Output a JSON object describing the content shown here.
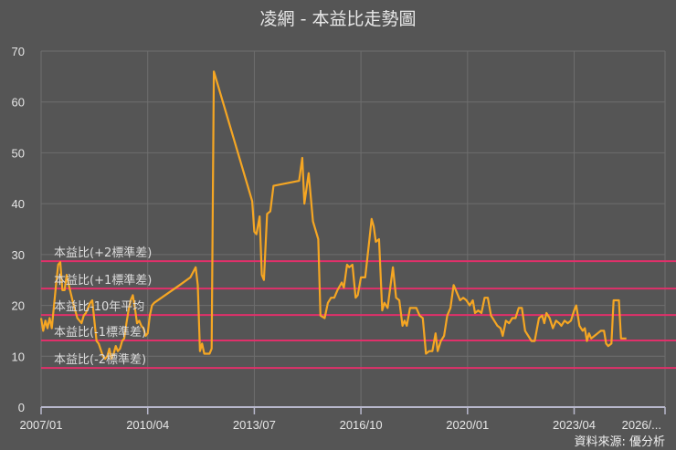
{
  "chart_data": {
    "type": "line",
    "title": "凌網 - 本益比走勢圖",
    "xlabel": "",
    "ylabel": "",
    "ylim": [
      0,
      70
    ],
    "yticks": [
      0,
      10,
      20,
      30,
      40,
      50,
      60,
      70
    ],
    "xticks": [
      "2007/01",
      "2010/04",
      "2013/07",
      "2016/10",
      "2020/01",
      "2023/04",
      "2026/..."
    ],
    "grid": true,
    "source": "資料來源: 優分析",
    "series": [
      {
        "name": "本益比",
        "color": "#f5a623",
        "points": [
          [
            0.0,
            17.5
          ],
          [
            0.02,
            15.0
          ],
          [
            0.04,
            17.0
          ],
          [
            0.06,
            15.5
          ],
          [
            0.08,
            17.5
          ],
          [
            0.1,
            15.5
          ],
          [
            0.14,
            24.0
          ],
          [
            0.16,
            28.0
          ],
          [
            0.18,
            28.5
          ],
          [
            0.2,
            23.0
          ],
          [
            0.22,
            23.0
          ],
          [
            0.24,
            26.0
          ],
          [
            0.26,
            24.0
          ],
          [
            0.3,
            20.5
          ],
          [
            0.34,
            17.5
          ],
          [
            0.38,
            16.5
          ],
          [
            0.4,
            18.0
          ],
          [
            0.42,
            18.5
          ],
          [
            0.46,
            20.5
          ],
          [
            0.48,
            21.0
          ],
          [
            0.5,
            17.0
          ],
          [
            0.52,
            13.0
          ],
          [
            0.54,
            12.5
          ],
          [
            0.58,
            10.0
          ],
          [
            0.6,
            9.5
          ],
          [
            0.62,
            10.0
          ],
          [
            0.64,
            11.5
          ],
          [
            0.66,
            9.5
          ],
          [
            0.68,
            10.5
          ],
          [
            0.7,
            12.0
          ],
          [
            0.72,
            11.0
          ],
          [
            0.74,
            11.5
          ],
          [
            0.76,
            13.0
          ],
          [
            0.78,
            13.5
          ],
          [
            0.8,
            16.5
          ],
          [
            0.82,
            19.0
          ],
          [
            0.84,
            21.0
          ],
          [
            0.86,
            22.0
          ],
          [
            0.88,
            19.5
          ],
          [
            0.9,
            16.5
          ],
          [
            0.92,
            17.0
          ],
          [
            0.94,
            16.0
          ],
          [
            0.96,
            15.5
          ],
          [
            0.98,
            14.0
          ],
          [
            1.0,
            14.5
          ],
          [
            1.02,
            18.0
          ],
          [
            1.04,
            20.0
          ],
          [
            1.06,
            20.5
          ],
          [
            1.3,
            24.0
          ],
          [
            1.4,
            25.5
          ],
          [
            1.45,
            27.5
          ],
          [
            1.47,
            24.0
          ],
          [
            1.49,
            11.0
          ],
          [
            1.51,
            12.5
          ],
          [
            1.53,
            10.5
          ],
          [
            1.58,
            10.5
          ],
          [
            1.6,
            11.5
          ],
          [
            1.62,
            66.0
          ],
          [
            1.98,
            40.5
          ],
          [
            2.0,
            34.5
          ],
          [
            2.02,
            34.0
          ],
          [
            2.05,
            37.5
          ],
          [
            2.07,
            26.0
          ],
          [
            2.09,
            25.0
          ],
          [
            2.12,
            38.0
          ],
          [
            2.15,
            38.5
          ],
          [
            2.18,
            43.5
          ],
          [
            2.42,
            44.5
          ],
          [
            2.45,
            49.0
          ],
          [
            2.47,
            40.0
          ],
          [
            2.51,
            46.0
          ],
          [
            2.55,
            36.5
          ],
          [
            2.6,
            33.0
          ],
          [
            2.62,
            18.0
          ],
          [
            2.66,
            17.5
          ],
          [
            2.69,
            20.5
          ],
          [
            2.72,
            21.5
          ],
          [
            2.75,
            21.5
          ],
          [
            2.78,
            23.0
          ],
          [
            2.82,
            24.5
          ],
          [
            2.84,
            23.5
          ],
          [
            2.87,
            28.0
          ],
          [
            2.89,
            27.5
          ],
          [
            2.92,
            28.0
          ],
          [
            2.95,
            21.5
          ],
          [
            2.97,
            22.0
          ],
          [
            3.0,
            25.5
          ],
          [
            3.04,
            25.5
          ],
          [
            3.08,
            33.0
          ],
          [
            3.1,
            37.0
          ],
          [
            3.12,
            35.5
          ],
          [
            3.14,
            32.5
          ],
          [
            3.17,
            33.0
          ],
          [
            3.2,
            19.0
          ],
          [
            3.22,
            20.5
          ],
          [
            3.25,
            19.5
          ],
          [
            3.3,
            27.5
          ],
          [
            3.33,
            21.5
          ],
          [
            3.36,
            21.0
          ],
          [
            3.39,
            16.0
          ],
          [
            3.41,
            17.0
          ],
          [
            3.43,
            16.0
          ],
          [
            3.46,
            19.5
          ],
          [
            3.52,
            19.5
          ],
          [
            3.55,
            18.0
          ],
          [
            3.58,
            17.5
          ],
          [
            3.61,
            10.5
          ],
          [
            3.64,
            11.0
          ],
          [
            3.67,
            11.0
          ],
          [
            3.7,
            14.5
          ],
          [
            3.72,
            11.0
          ],
          [
            3.75,
            13.0
          ],
          [
            3.78,
            14.0
          ],
          [
            3.81,
            18.0
          ],
          [
            3.84,
            19.5
          ],
          [
            3.87,
            24.0
          ],
          [
            3.9,
            22.5
          ],
          [
            3.93,
            21.0
          ],
          [
            3.96,
            21.5
          ],
          [
            3.99,
            21.0
          ],
          [
            4.02,
            20.0
          ],
          [
            4.05,
            21.0
          ],
          [
            4.07,
            18.5
          ],
          [
            4.1,
            19.0
          ],
          [
            4.13,
            18.5
          ],
          [
            4.16,
            21.5
          ],
          [
            4.19,
            21.5
          ],
          [
            4.22,
            18.0
          ],
          [
            4.25,
            17.0
          ],
          [
            4.28,
            16.0
          ],
          [
            4.31,
            15.5
          ],
          [
            4.33,
            14.0
          ],
          [
            4.36,
            17.0
          ],
          [
            4.39,
            16.5
          ],
          [
            4.42,
            17.5
          ],
          [
            4.45,
            17.5
          ],
          [
            4.48,
            19.5
          ],
          [
            4.51,
            19.5
          ],
          [
            4.54,
            15.0
          ],
          [
            4.57,
            14.0
          ],
          [
            4.6,
            13.0
          ],
          [
            4.63,
            13.0
          ],
          [
            4.67,
            17.5
          ],
          [
            4.7,
            18.0
          ],
          [
            4.72,
            16.5
          ],
          [
            4.74,
            18.5
          ],
          [
            4.77,
            17.5
          ],
          [
            4.8,
            15.5
          ],
          [
            4.83,
            17.0
          ],
          [
            4.86,
            16.5
          ],
          [
            4.88,
            16.0
          ],
          [
            4.91,
            17.0
          ],
          [
            4.94,
            16.5
          ],
          [
            4.97,
            17.0
          ],
          [
            5.0,
            19.0
          ],
          [
            5.02,
            20.0
          ],
          [
            5.05,
            16.0
          ],
          [
            5.08,
            15.0
          ],
          [
            5.1,
            15.5
          ],
          [
            5.12,
            13.0
          ],
          [
            5.14,
            14.5
          ],
          [
            5.16,
            13.5
          ],
          [
            5.19,
            14.0
          ],
          [
            5.22,
            14.5
          ],
          [
            5.25,
            15.0
          ],
          [
            5.28,
            15.0
          ],
          [
            5.3,
            12.5
          ],
          [
            5.32,
            12.0
          ],
          [
            5.35,
            12.5
          ],
          [
            5.37,
            21.0
          ],
          [
            5.42,
            21.0
          ],
          [
            5.44,
            13.5
          ],
          [
            5.47,
            13.5
          ],
          [
            5.49,
            13.5
          ]
        ]
      }
    ],
    "reference_lines": [
      {
        "name": "本益比(+2標準差)",
        "value": 28.7,
        "color": "#e0306a"
      },
      {
        "name": "本益比(+1標準差)",
        "value": 23.3,
        "color": "#e0306a"
      },
      {
        "name": "本益比-10年平均",
        "value": 18.1,
        "color": "#e0306a"
      },
      {
        "name": "本益比(-1標準差)",
        "value": 13.1,
        "color": "#e0306a"
      },
      {
        "name": "本益比(-2標準差)",
        "value": 7.7,
        "color": "#e0306a"
      }
    ]
  },
  "colors": {
    "background": "#555555",
    "grid": "#6e6e6e",
    "axis": "#b8b8cc",
    "line": "#f5a623",
    "reference": "#e0306a"
  }
}
